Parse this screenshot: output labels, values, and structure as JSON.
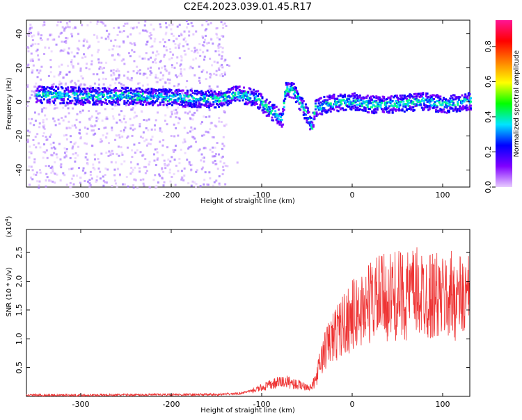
{
  "title": "C2E4.2023.039.01.45.R17",
  "chart_data": [
    {
      "type": "heatmap",
      "xlabel": "Height of straight line (km)",
      "ylabel": "Frequency (Hz)",
      "xlim": [
        -360,
        130
      ],
      "ylim": [
        -50,
        48
      ],
      "xticks": [
        -300,
        -200,
        -100,
        0,
        100
      ],
      "yticks": [
        -40,
        -20,
        0,
        20,
        40
      ],
      "colorbar": {
        "label": "Normalized spectral amplitude",
        "range": [
          0.0,
          0.95
        ],
        "ticks": [
          0.0,
          0.2,
          0.4,
          0.6,
          0.8
        ],
        "colors": [
          "#e8ccff",
          "#8000ff",
          "#0000ff",
          "#00e5ff",
          "#00ff00",
          "#ffff00",
          "#ff8000",
          "#ff0000",
          "#ff1493"
        ]
      },
      "trace": {
        "x": [
          -350,
          -300,
          -250,
          -200,
          -150,
          -130,
          -115,
          -105,
          -95,
          -85,
          -78,
          -75,
          -70,
          -65,
          -60,
          -55,
          -50,
          -45,
          -42,
          -40,
          -30,
          -20,
          0,
          20,
          40,
          60,
          80,
          100,
          130
        ],
        "frequency": [
          5,
          4,
          4,
          3,
          2,
          5,
          4,
          2,
          -3,
          -7,
          -10,
          7,
          8,
          7,
          2,
          -3,
          -8,
          -14,
          -2,
          -3,
          -1,
          0,
          1,
          -1,
          -1,
          0,
          1,
          -1,
          1
        ]
      }
    },
    {
      "type": "line",
      "xlabel": "Height of straight line (km)",
      "ylabel": "SNR (10 * v/v)",
      "scale_label": "(x10",
      "scale_exp": "4",
      "scale_close": ")",
      "xlim": [
        -360,
        130
      ],
      "ylim": [
        0,
        2.9
      ],
      "xticks": [
        -300,
        -200,
        -100,
        0,
        100
      ],
      "yticks": [
        0.5,
        1.0,
        1.5,
        2.0,
        2.5
      ],
      "color": "#ee3333",
      "x": [
        -360,
        -300,
        -200,
        -150,
        -125,
        -110,
        -100,
        -90,
        -80,
        -70,
        -60,
        -50,
        -45,
        -40,
        -35,
        -30,
        -25,
        -20,
        -15,
        -10,
        0,
        10,
        20,
        30,
        40,
        50,
        60,
        70,
        80,
        90,
        100,
        110,
        120,
        130
      ],
      "y": [
        0.02,
        0.02,
        0.03,
        0.03,
        0.05,
        0.1,
        0.15,
        0.2,
        0.25,
        0.25,
        0.2,
        0.18,
        0.15,
        0.3,
        0.6,
        0.8,
        0.95,
        1.05,
        1.15,
        1.25,
        1.4,
        1.5,
        1.65,
        1.7,
        1.72,
        1.75,
        1.75,
        1.8,
        1.78,
        1.75,
        1.7,
        1.75,
        1.72,
        1.7
      ]
    }
  ]
}
